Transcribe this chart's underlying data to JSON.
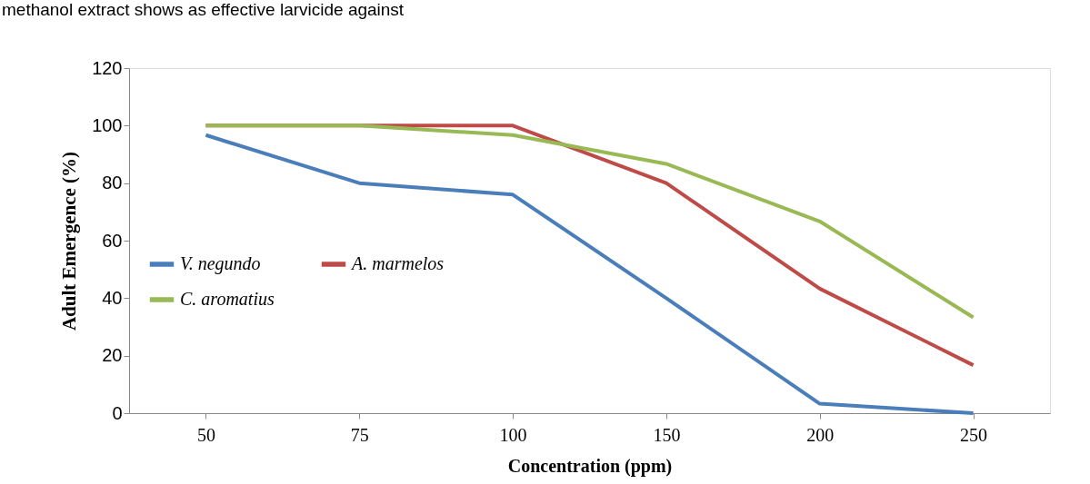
{
  "chart_data": {
    "type": "line",
    "xlabel": "Concentration (ppm)",
    "ylabel": "Adult Emergence (%)",
    "annotations": [
      "methanol extract shows as effective larvicide against"
    ],
    "categories": [
      "50",
      "75",
      "100",
      "150",
      "200",
      "250"
    ],
    "series": [
      {
        "name": "V. negundo",
        "color": "#4a7ebb",
        "values": [
          96.7,
          80,
          76,
          40,
          3.3,
          0
        ]
      },
      {
        "name": "A. marmelos",
        "color": "#be4b48",
        "values": [
          100,
          100,
          100,
          80,
          43.3,
          16.7
        ]
      },
      {
        "name": "C. aromatius",
        "color": "#98b954",
        "values": [
          100,
          100,
          96.7,
          86.7,
          66.7,
          33.3
        ]
      }
    ],
    "ylim": [
      0,
      120
    ],
    "yticks": [
      0,
      20,
      40,
      60,
      80,
      100,
      120
    ],
    "grid": false,
    "legend": "left",
    "marker": "none",
    "line_style": "solid"
  }
}
